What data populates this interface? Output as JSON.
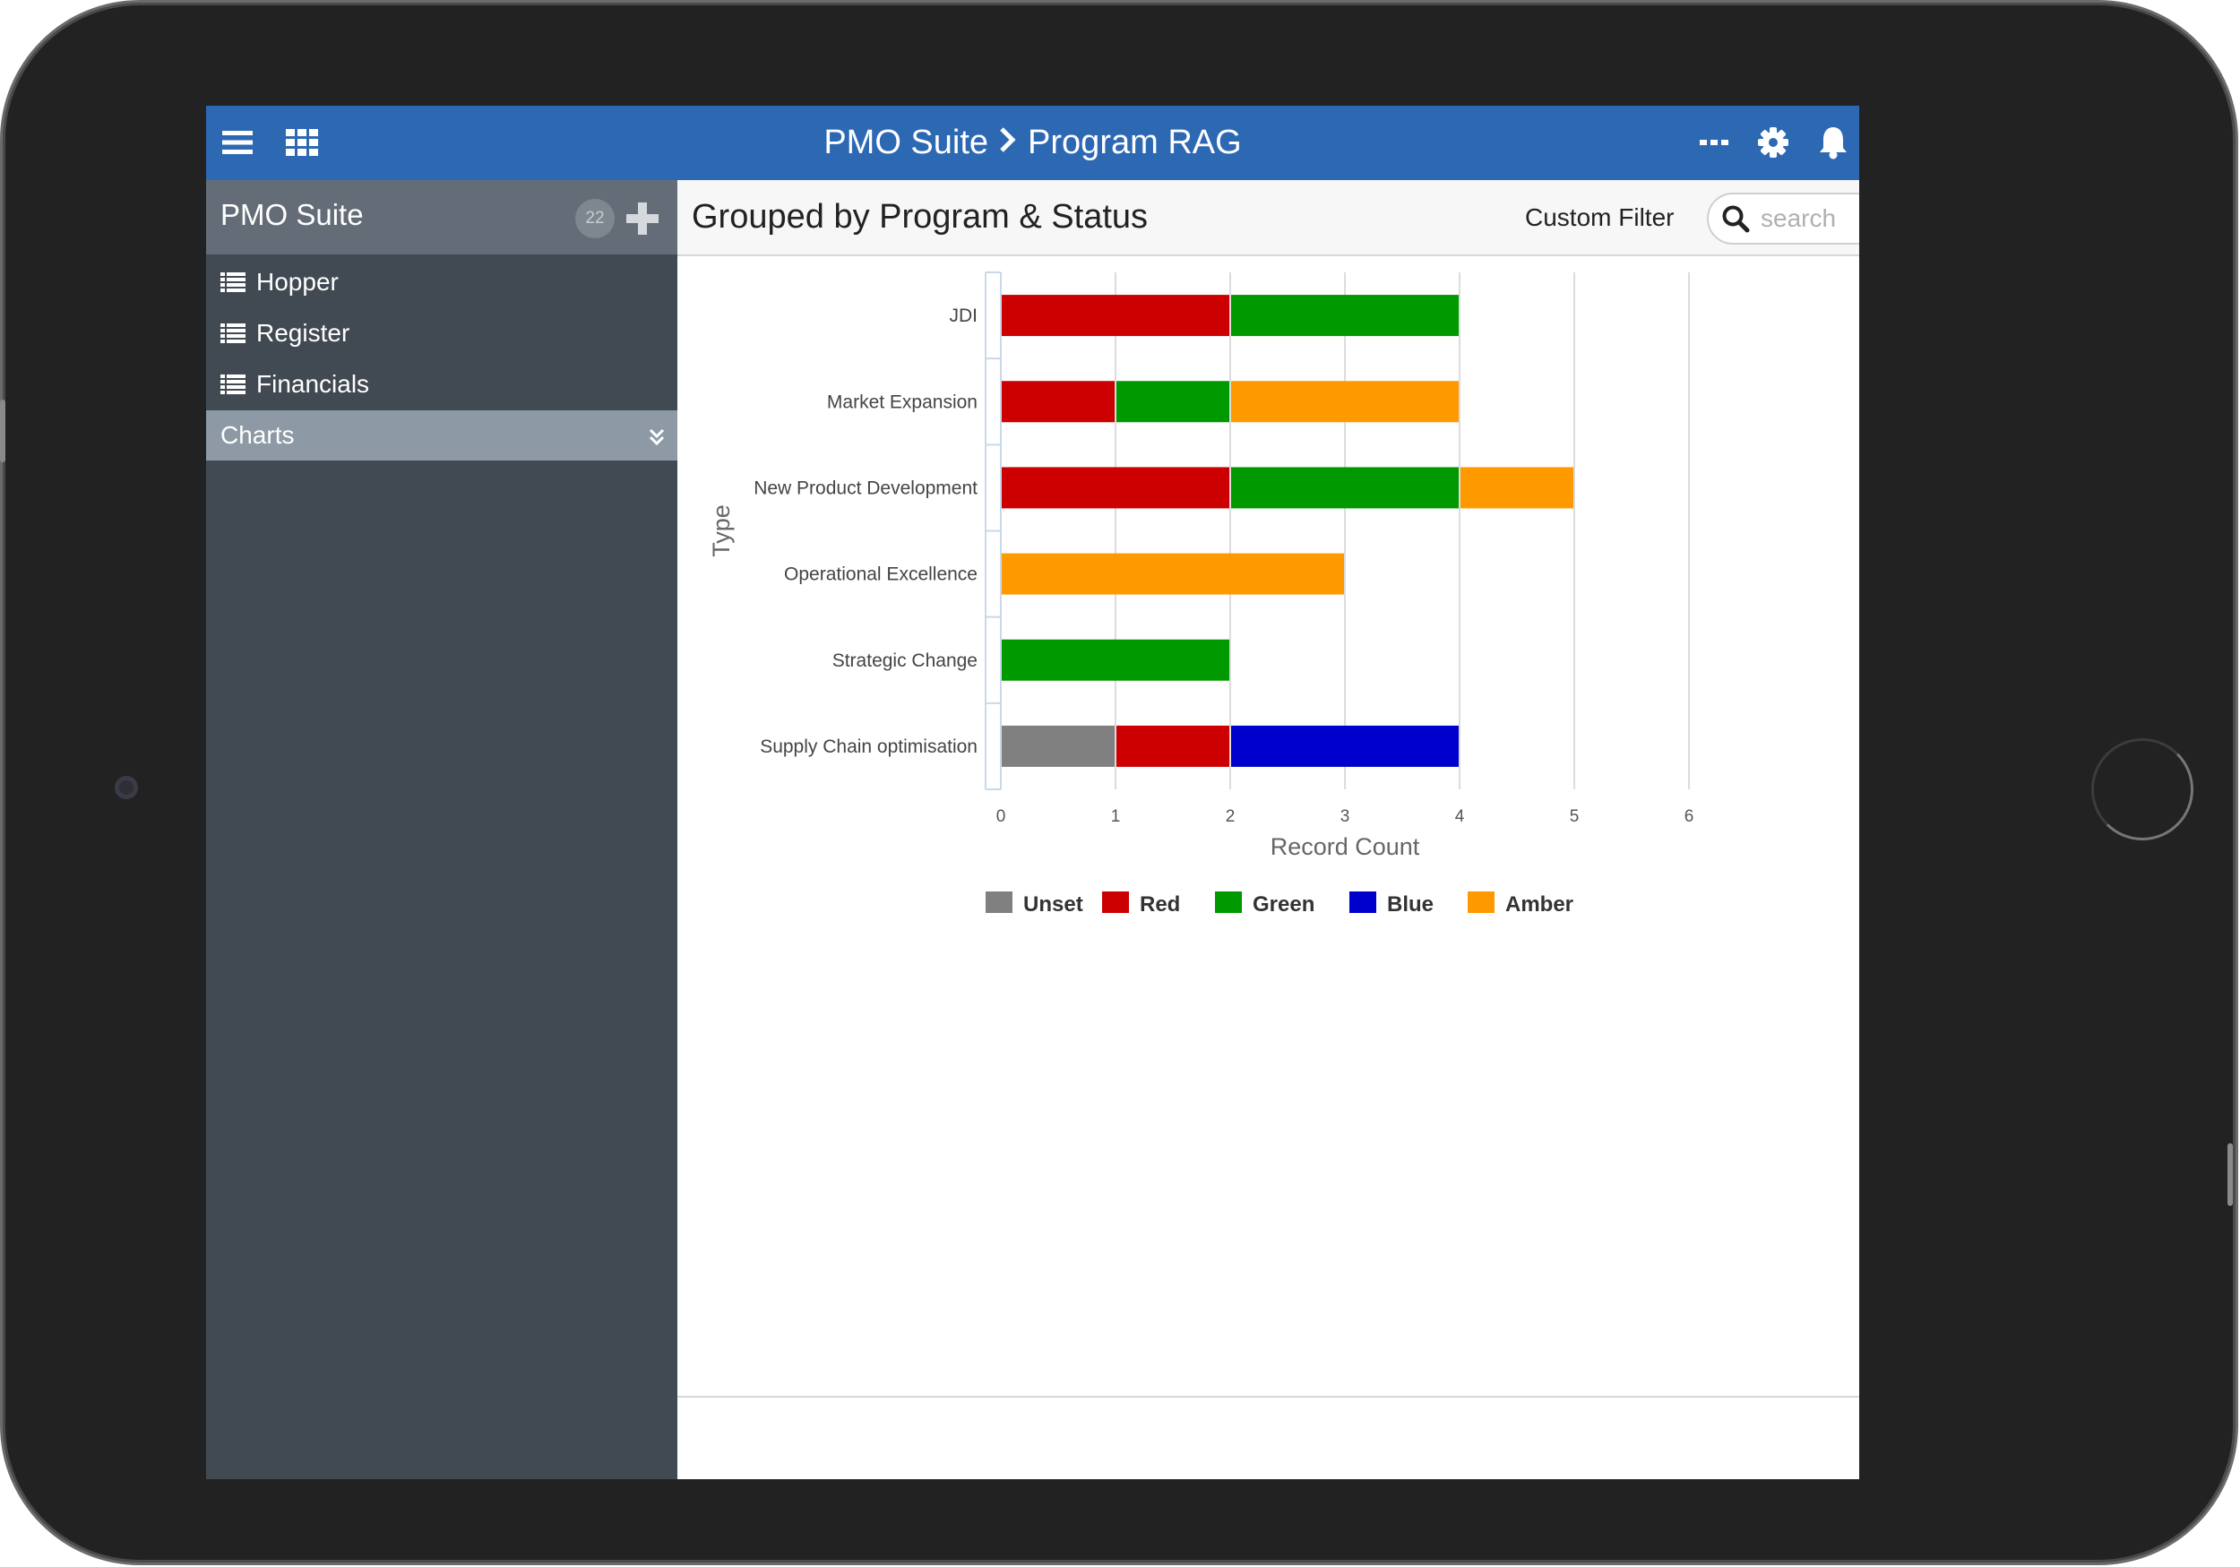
{
  "app": {
    "breadcrumb_root": "PMO Suite",
    "breadcrumb_separator": ">",
    "breadcrumb_page": "Program RAG",
    "accent_color": "#2d68b3"
  },
  "topbar": {
    "menu_icon": "hamburger-menu-icon",
    "apps_icon": "apps-grid-icon",
    "more_icon": "more-dots-icon",
    "settings_icon": "gear-icon",
    "notifications_icon": "bell-icon"
  },
  "sidebar": {
    "title": "PMO Suite",
    "count": "22",
    "items": [
      {
        "label": "Hopper",
        "icon": "list-icon"
      },
      {
        "label": "Register",
        "icon": "list-icon"
      },
      {
        "label": "Financials",
        "icon": "list-icon"
      }
    ],
    "section": {
      "label": "Charts",
      "icon": "chevron-double-down-icon"
    }
  },
  "main": {
    "title": "Grouped by Program & Status",
    "custom_filter_label": "Custom Filter",
    "search_placeholder": "search",
    "search_value": ""
  },
  "footer": {
    "info_icon": "info-icon",
    "help_icon": "help-icon"
  },
  "chart_data": {
    "type": "bar",
    "orientation": "horizontal",
    "stacked": true,
    "categories": [
      "JDI",
      "Market Expansion",
      "New Product Development",
      "Operational Excellence",
      "Strategic Change",
      "Supply Chain optimisation"
    ],
    "series": [
      {
        "name": "Unset",
        "color": "#808080",
        "values": [
          0,
          0,
          0,
          0,
          0,
          1
        ]
      },
      {
        "name": "Red",
        "color": "#cc0000",
        "values": [
          2,
          1,
          2,
          0,
          0,
          1
        ]
      },
      {
        "name": "Green",
        "color": "#009900",
        "values": [
          2,
          1,
          2,
          0,
          2,
          0
        ]
      },
      {
        "name": "Blue",
        "color": "#0000cc",
        "values": [
          0,
          0,
          0,
          0,
          0,
          2
        ]
      },
      {
        "name": "Amber",
        "color": "#ff9900",
        "values": [
          0,
          2,
          1,
          3,
          0,
          0
        ]
      }
    ],
    "xlabel": "Record Count",
    "ylabel": "Type",
    "xlim": [
      0,
      6
    ],
    "x_ticks": [
      "0",
      "1",
      "2",
      "3",
      "4",
      "5",
      "6"
    ],
    "grid": true,
    "legend_position": "bottom"
  }
}
